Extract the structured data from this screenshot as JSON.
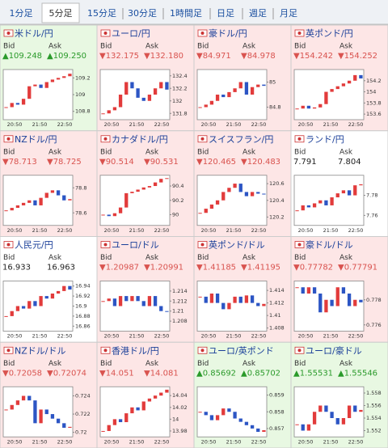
{
  "tabs": [
    "1分足",
    "5分足",
    "15分足",
    "30分足",
    "1時間足",
    "日足",
    "週足",
    "月足"
  ],
  "selected_tab": 1,
  "bid_label": "Bid",
  "ask_label": "Ask",
  "time_labels": [
    "20:50",
    "21:50",
    "22:50"
  ],
  "tiles": [
    {
      "name": "米ドル/円",
      "trend": "up",
      "bid": "▲109.248",
      "ask": "▲109.250",
      "ylim": [
        108.7,
        109.3
      ],
      "yticks": [
        108.8,
        109,
        109.2
      ],
      "values": [
        108.85,
        108.9,
        108.88,
        108.95,
        109.1,
        109.12,
        109.08,
        109.15,
        109.18,
        109.2,
        109.22,
        109.25
      ]
    },
    {
      "name": "ユーロ/円",
      "trend": "down",
      "bid": "▼132.175",
      "ask": "▼132.180",
      "ylim": [
        131.7,
        132.5
      ],
      "yticks": [
        131.8,
        132,
        132.2,
        132.4
      ],
      "values": [
        131.8,
        131.85,
        131.9,
        132.1,
        132.3,
        132.2,
        132.05,
        132.0,
        132.1,
        132.2,
        132.3,
        132.18
      ]
    },
    {
      "name": "豪ドル/円",
      "trend": "down",
      "bid": "▼84.971",
      "ask": "▼84.978",
      "ylim": [
        84.7,
        85.1
      ],
      "yticks": [
        84.8,
        85
      ],
      "values": [
        84.8,
        84.82,
        84.85,
        84.9,
        84.88,
        84.92,
        84.95,
        85.0,
        84.9,
        84.96,
        84.98,
        84.97
      ]
    },
    {
      "name": "英ポンド/円",
      "trend": "down",
      "bid": "▼154.242",
      "ask": "▼154.252",
      "ylim": [
        153.5,
        154.4
      ],
      "yticks": [
        153.6,
        153.8,
        154,
        154.2
      ],
      "values": [
        153.7,
        153.75,
        153.7,
        153.72,
        153.78,
        154.0,
        154.05,
        154.1,
        154.15,
        154.2,
        154.3,
        154.24
      ]
    },
    {
      "name": "NZドル/円",
      "trend": "down",
      "bid": "▼78.713",
      "ask": "▼78.725",
      "ylim": [
        78.5,
        78.9
      ],
      "yticks": [
        78.6,
        78.8
      ],
      "values": [
        78.62,
        78.64,
        78.66,
        78.68,
        78.7,
        78.66,
        78.72,
        78.76,
        78.78,
        78.74,
        78.7,
        78.71
      ]
    },
    {
      "name": "カナダドル/円",
      "trend": "down",
      "bid": "▼90.514",
      "ask": "▼90.531",
      "ylim": [
        89.85,
        90.55
      ],
      "yticks": [
        90,
        90.2,
        90.4
      ],
      "values": [
        90.0,
        89.98,
        90.02,
        90.1,
        90.3,
        90.32,
        90.35,
        90.38,
        90.4,
        90.45,
        90.5,
        90.51
      ]
    },
    {
      "name": "スイスフラン/円",
      "trend": "down",
      "bid": "▼120.465",
      "ask": "▼120.483",
      "ylim": [
        120.1,
        120.7
      ],
      "yticks": [
        120.2,
        120.4,
        120.6
      ],
      "values": [
        120.25,
        120.3,
        120.35,
        120.4,
        120.5,
        120.55,
        120.6,
        120.5,
        120.45,
        120.5,
        120.48,
        120.47
      ]
    },
    {
      "name": "ランド/円",
      "trend": "flat",
      "bid": "7.791",
      "ask": "7.804",
      "ylim": [
        7.75,
        7.8
      ],
      "yticks": [
        7.76,
        7.78
      ],
      "values": [
        7.765,
        7.77,
        7.768,
        7.772,
        7.775,
        7.77,
        7.778,
        7.782,
        7.785,
        7.78,
        7.79,
        7.791
      ]
    },
    {
      "name": "人民元/円",
      "trend": "flat",
      "bid": "16.933",
      "ask": "16.963",
      "ylim": [
        16.85,
        16.95
      ],
      "yticks": [
        16.86,
        16.88,
        16.9,
        16.92,
        16.94
      ],
      "values": [
        16.88,
        16.89,
        16.9,
        16.895,
        16.91,
        16.9,
        16.92,
        16.915,
        16.925,
        16.93,
        16.94,
        16.933
      ]
    },
    {
      "name": "ユーロ/ドル",
      "trend": "down",
      "bid": "▼1.20987",
      "ask": "▼1.20991",
      "ylim": [
        1.206,
        1.216
      ],
      "yticks": [
        1.208,
        1.21,
        1.212,
        1.214
      ],
      "values": [
        1.212,
        1.2125,
        1.211,
        1.213,
        1.212,
        1.213,
        1.212,
        1.211,
        1.213,
        1.211,
        1.21,
        1.2099
      ]
    },
    {
      "name": "英ポンド/ドル",
      "trend": "down",
      "bid": "▼1.41185",
      "ask": "▼1.41195",
      "ylim": [
        1.4075,
        1.4155
      ],
      "yticks": [
        1.408,
        1.41,
        1.412,
        1.414
      ],
      "values": [
        1.413,
        1.412,
        1.4135,
        1.412,
        1.411,
        1.412,
        1.413,
        1.412,
        1.4132,
        1.412,
        1.4115,
        1.41185
      ]
    },
    {
      "name": "豪ドル/ドル",
      "trend": "down",
      "bid": "▼0.77782",
      "ask": "▼0.77791",
      "ylim": [
        0.7755,
        0.7795
      ],
      "yticks": [
        0.776,
        0.778
      ],
      "values": [
        0.779,
        0.7785,
        0.779,
        0.7785,
        0.777,
        0.778,
        0.7775,
        0.779,
        0.7785,
        0.7775,
        0.778,
        0.7778
      ]
    },
    {
      "name": "NZドル/ドル",
      "trend": "down",
      "bid": "▼0.72058",
      "ask": "▼0.72074",
      "ylim": [
        0.7195,
        0.725
      ],
      "yticks": [
        0.72,
        0.722,
        0.724
      ],
      "values": [
        0.7225,
        0.723,
        0.7235,
        0.724,
        0.7235,
        0.721,
        0.7225,
        0.722,
        0.7215,
        0.721,
        0.7205,
        0.7206
      ]
    },
    {
      "name": "香港ドル/円",
      "trend": "down",
      "bid": "▼14.051",
      "ask": "▼14.081",
      "ylim": [
        13.97,
        14.055
      ],
      "yticks": [
        13.98,
        14,
        14.02,
        14.04
      ],
      "values": [
        13.98,
        13.99,
        14.0,
        13.995,
        14.01,
        14.02,
        14.015,
        14.03,
        14.035,
        14.04,
        14.045,
        14.05
      ]
    },
    {
      "name": "ユーロ/英ポンド",
      "trend": "up",
      "bid": "▲0.85692",
      "ask": "▲0.85702",
      "ylim": [
        0.8565,
        0.8595
      ],
      "yticks": [
        0.857,
        0.858,
        0.859
      ],
      "values": [
        0.858,
        0.8578,
        0.8575,
        0.8578,
        0.8582,
        0.858,
        0.8576,
        0.8574,
        0.8572,
        0.857,
        0.8568,
        0.8569
      ]
    },
    {
      "name": "ユーロ/豪ドル",
      "trend": "up",
      "bid": "▲1.55531",
      "ask": "▲1.55546",
      "ylim": [
        1.551,
        1.559
      ],
      "yticks": [
        1.552,
        1.554,
        1.556,
        1.558
      ],
      "values": [
        1.553,
        1.552,
        1.553,
        1.555,
        1.556,
        1.555,
        1.554,
        1.553,
        1.554,
        1.556,
        1.555,
        1.5553
      ]
    }
  ]
}
